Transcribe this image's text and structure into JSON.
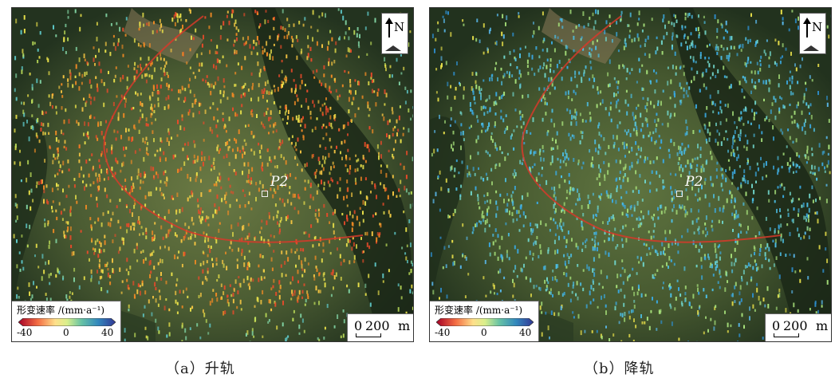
{
  "panels": [
    {
      "id": "a",
      "caption": "（a）升轨",
      "north_label": "N",
      "point_label": "P2",
      "legend": {
        "title": "形变速率 /(mm·a⁻¹)",
        "min_label": "-40",
        "mid_label": "0",
        "max_label": "40"
      },
      "scale": {
        "zero": "0",
        "value": "200",
        "unit": "m"
      },
      "dominant_tone": "warm"
    },
    {
      "id": "b",
      "caption": "（b）降轨",
      "north_label": "N",
      "point_label": "P2",
      "legend": {
        "title": "形变速率 /(mm·a⁻¹)",
        "min_label": "-40",
        "mid_label": "0",
        "max_label": "40"
      },
      "scale": {
        "zero": "0",
        "value": "200",
        "unit": "m"
      },
      "dominant_tone": "cool"
    }
  ],
  "colors": {
    "boundary_line": "#d63a2a",
    "colorbar_stops": [
      "#a50026",
      "#f46d43",
      "#fee08b",
      "#d9ef8b",
      "#66c2a5",
      "#3288bd",
      "#313695"
    ]
  }
}
